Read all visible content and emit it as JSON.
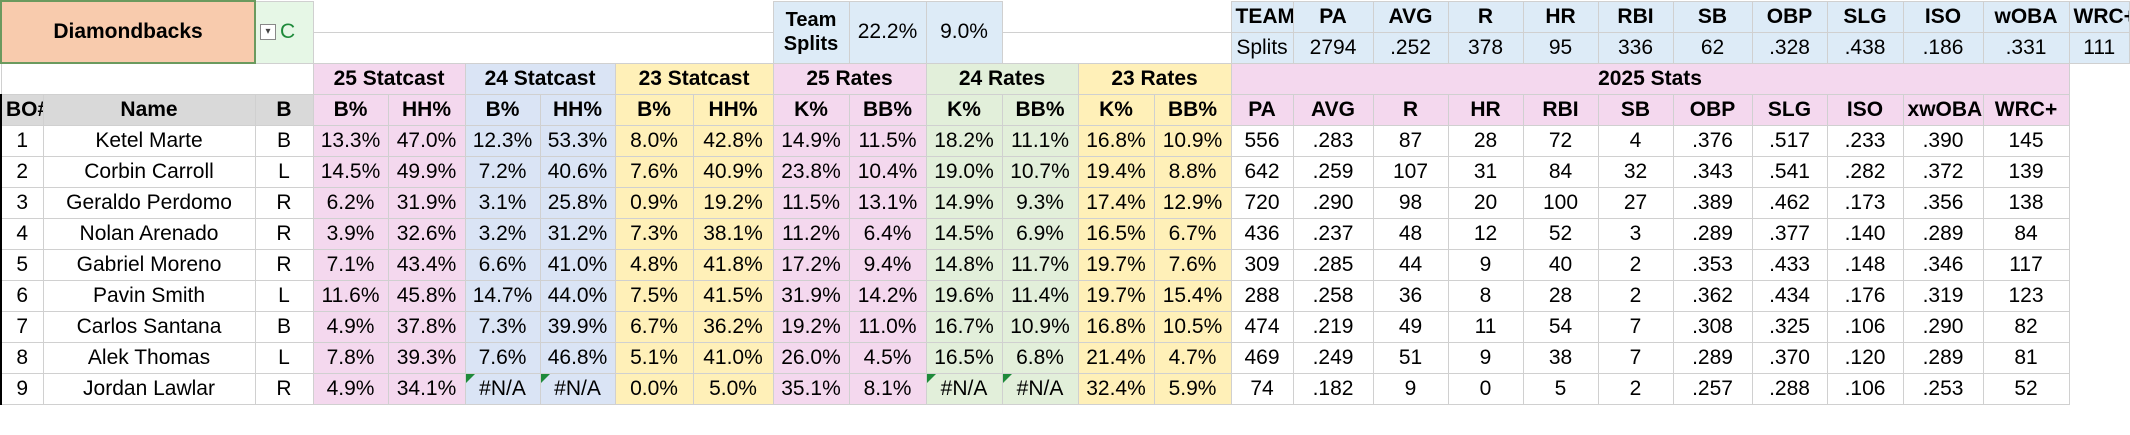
{
  "team_name": "Diamondbacks",
  "filter_cell": "C",
  "team_splits_label": "Team Splits",
  "team_k_pct": "22.2%",
  "team_bb_pct": "9.0%",
  "team_stats_header": [
    "TEAM",
    "PA",
    "AVG",
    "R",
    "HR",
    "RBI",
    "SB",
    "OBP",
    "SLG",
    "ISO",
    "wOBA",
    "WRC+"
  ],
  "team_stats_values": [
    "Splits",
    "2794",
    ".252",
    "378",
    "95",
    "336",
    "62",
    ".328",
    ".438",
    ".186",
    ".331",
    "111"
  ],
  "groups": {
    "statcast_25": "25 Statcast",
    "statcast_24": "24 Statcast",
    "statcast_23": "23 Statcast",
    "rates_25": "25 Rates",
    "rates_24": "24 Rates",
    "rates_23": "23 Rates",
    "stats_2025": "2025 Stats"
  },
  "columns": [
    "BO#",
    "Name",
    "B",
    "B%",
    "HH%",
    "B%",
    "HH%",
    "B%",
    "HH%",
    "K%",
    "BB%",
    "K%",
    "BB%",
    "K%",
    "BB%",
    "PA",
    "AVG",
    "R",
    "HR",
    "RBI",
    "SB",
    "OBP",
    "SLG",
    "ISO",
    "xwOBA",
    "WRC+"
  ],
  "rows": [
    [
      "1",
      "Ketel Marte",
      "B",
      "13.3%",
      "47.0%",
      "12.3%",
      "53.3%",
      "8.0%",
      "42.8%",
      "14.9%",
      "11.5%",
      "18.2%",
      "11.1%",
      "16.8%",
      "10.9%",
      "556",
      ".283",
      "87",
      "28",
      "72",
      "4",
      ".376",
      ".517",
      ".233",
      ".390",
      "145"
    ],
    [
      "2",
      "Corbin Carroll",
      "L",
      "14.5%",
      "49.9%",
      "7.2%",
      "40.6%",
      "7.6%",
      "40.9%",
      "23.8%",
      "10.4%",
      "19.0%",
      "10.7%",
      "19.4%",
      "8.8%",
      "642",
      ".259",
      "107",
      "31",
      "84",
      "32",
      ".343",
      ".541",
      ".282",
      ".372",
      "139"
    ],
    [
      "3",
      "Geraldo Perdomo",
      "R",
      "6.2%",
      "31.9%",
      "3.1%",
      "25.8%",
      "0.9%",
      "19.2%",
      "11.5%",
      "13.1%",
      "14.9%",
      "9.3%",
      "17.4%",
      "12.9%",
      "720",
      ".290",
      "98",
      "20",
      "100",
      "27",
      ".389",
      ".462",
      ".173",
      ".356",
      "138"
    ],
    [
      "4",
      "Nolan Arenado",
      "R",
      "3.9%",
      "32.6%",
      "3.2%",
      "31.2%",
      "7.3%",
      "38.1%",
      "11.2%",
      "6.4%",
      "14.5%",
      "6.9%",
      "16.5%",
      "6.7%",
      "436",
      ".237",
      "48",
      "12",
      "52",
      "3",
      ".289",
      ".377",
      ".140",
      ".289",
      "84"
    ],
    [
      "5",
      "Gabriel Moreno",
      "R",
      "7.1%",
      "43.4%",
      "6.6%",
      "41.0%",
      "4.8%",
      "41.8%",
      "17.2%",
      "9.4%",
      "14.8%",
      "11.7%",
      "19.7%",
      "7.6%",
      "309",
      ".285",
      "44",
      "9",
      "40",
      "2",
      ".353",
      ".433",
      ".148",
      ".346",
      "117"
    ],
    [
      "6",
      "Pavin Smith",
      "L",
      "11.6%",
      "45.8%",
      "14.7%",
      "44.0%",
      "7.5%",
      "41.5%",
      "31.9%",
      "14.2%",
      "19.6%",
      "11.4%",
      "19.7%",
      "15.4%",
      "288",
      ".258",
      "36",
      "8",
      "28",
      "2",
      ".362",
      ".434",
      ".176",
      ".319",
      "123"
    ],
    [
      "7",
      "Carlos Santana",
      "B",
      "4.9%",
      "37.8%",
      "7.3%",
      "39.9%",
      "6.7%",
      "36.2%",
      "19.2%",
      "11.0%",
      "16.7%",
      "10.9%",
      "16.8%",
      "10.5%",
      "474",
      ".219",
      "49",
      "11",
      "54",
      "7",
      ".308",
      ".325",
      ".106",
      ".290",
      "82"
    ],
    [
      "8",
      "Alek Thomas",
      "L",
      "7.8%",
      "39.3%",
      "7.6%",
      "46.8%",
      "5.1%",
      "41.0%",
      "26.0%",
      "4.5%",
      "16.5%",
      "6.8%",
      "21.4%",
      "4.7%",
      "469",
      ".249",
      "51",
      "9",
      "38",
      "7",
      ".289",
      ".370",
      ".120",
      ".289",
      "81"
    ],
    [
      "9",
      "Jordan Lawlar",
      "R",
      "4.9%",
      "34.1%",
      "#N/A",
      "#N/A",
      "0.0%",
      "5.0%",
      "35.1%",
      "8.1%",
      "#N/A",
      "#N/A",
      "32.4%",
      "5.9%",
      "74",
      ".182",
      "9",
      "0",
      "5",
      "2",
      ".257",
      ".288",
      ".106",
      ".253",
      "52"
    ]
  ]
}
